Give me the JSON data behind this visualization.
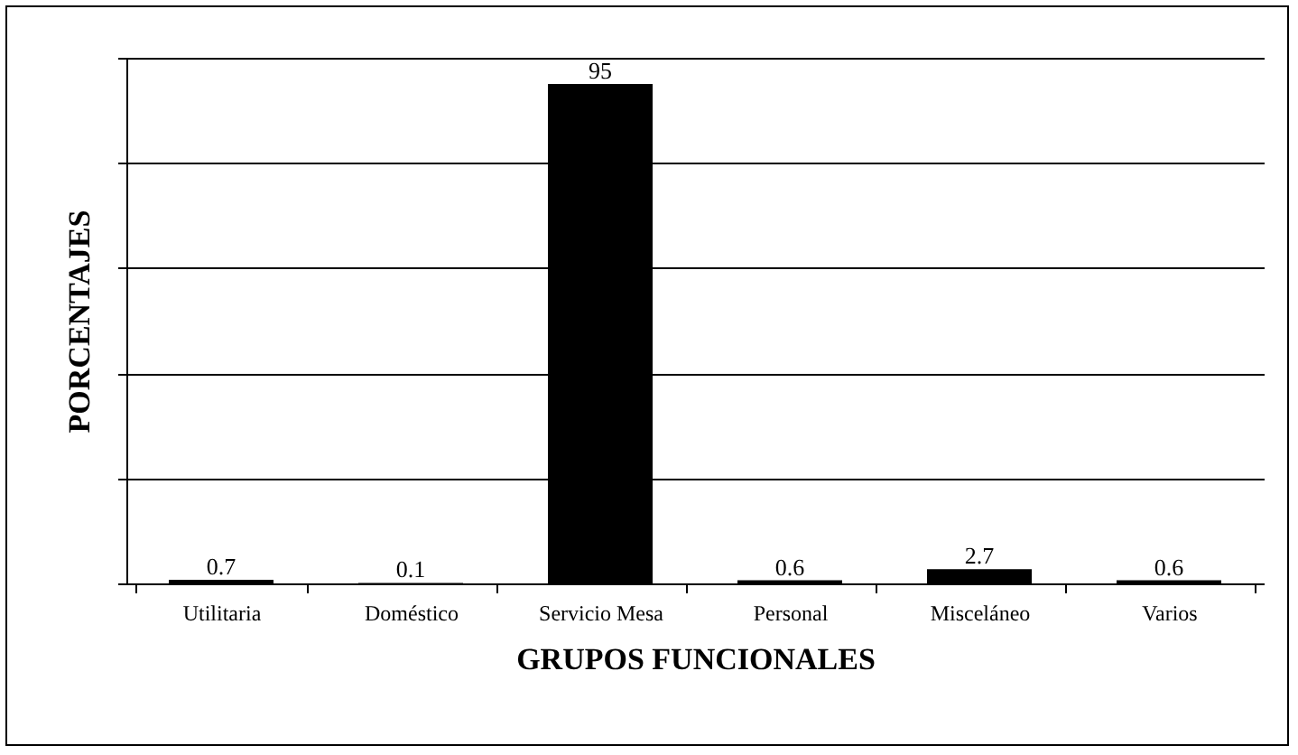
{
  "chart_data": {
    "type": "bar",
    "xlabel": "GRUPOS FUNCIONALES",
    "ylabel": "PORCENTAJES",
    "categories": [
      "Utilitaria",
      "Doméstico",
      "Servicio Mesa",
      "Personal",
      "Misceláneo",
      "Varios"
    ],
    "values": [
      0.7,
      0.1,
      95,
      0.6,
      2.7,
      0.6
    ],
    "color": "#000000",
    "ylim": [
      0,
      100
    ],
    "yticks": [
      {
        "value": 0,
        "label": null
      },
      {
        "value": 20,
        "label": null
      },
      {
        "value": 40,
        "label": null
      },
      {
        "value": 60,
        "label": null
      },
      {
        "value": 80,
        "label": null
      },
      {
        "value": 100,
        "label": null
      }
    ],
    "grid": "y",
    "data_labels": true
  }
}
